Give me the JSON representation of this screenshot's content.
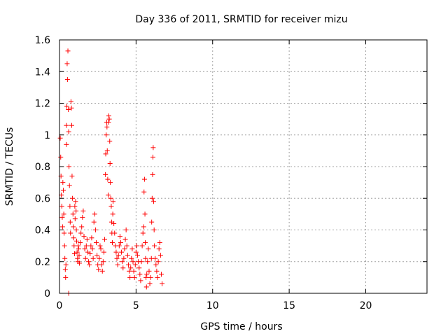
{
  "chart_data": {
    "type": "scatter",
    "title": "Day 336 of 2011, SRMTID for receiver mizu",
    "xlabel": "GPS time / hours",
    "ylabel": "SRMTID / TECUs",
    "xlim": [
      0,
      24
    ],
    "ylim": [
      0,
      1.6
    ],
    "xticks": [
      "0",
      "5",
      "10",
      "15",
      "20"
    ],
    "yticks": [
      "0",
      "0.2",
      "0.4",
      "0.6",
      "0.8",
      "1",
      "1.2",
      "1.4",
      "1.6"
    ],
    "grid": true,
    "marker": "+",
    "color": "#ff0000",
    "series": [
      {
        "points": [
          [
            0.05,
            0.98
          ],
          [
            0.08,
            0.86
          ],
          [
            0.1,
            0.74
          ],
          [
            0.12,
            0.62
          ],
          [
            0.15,
            0.55
          ],
          [
            0.18,
            0.48
          ],
          [
            0.2,
            0.42
          ],
          [
            0.22,
            0.7
          ],
          [
            0.25,
            0.65
          ],
          [
            0.28,
            0.5
          ],
          [
            0.3,
            0.38
          ],
          [
            0.33,
            0.3
          ],
          [
            0.35,
            0.22
          ],
          [
            0.38,
            0.15
          ],
          [
            0.4,
            0.1
          ],
          [
            0.42,
            0.18
          ],
          [
            0.45,
            0.94
          ],
          [
            0.45,
            1.06
          ],
          [
            0.48,
            1.18
          ],
          [
            0.5,
            1.45
          ],
          [
            0.52,
            1.35
          ],
          [
            0.55,
            1.53
          ],
          [
            0.58,
            1.16
          ],
          [
            0.6,
            1.02
          ],
          [
            0.62,
            0.8
          ],
          [
            0.65,
            0.68
          ],
          [
            0.68,
            0.55
          ],
          [
            0.7,
            0.45
          ],
          [
            0.72,
            0.38
          ],
          [
            0.75,
            1.21
          ],
          [
            0.78,
            1.17
          ],
          [
            0.8,
            1.06
          ],
          [
            0.82,
            0.74
          ],
          [
            0.85,
            0.6
          ],
          [
            0.88,
            0.5
          ],
          [
            0.9,
            0.42
          ],
          [
            0.92,
            0.35
          ],
          [
            0.95,
            0.3
          ],
          [
            0.98,
            0.25
          ],
          [
            1.0,
            0.55
          ],
          [
            1.02,
            0.47
          ],
          [
            1.05,
            0.58
          ],
          [
            1.08,
            0.52
          ],
          [
            1.1,
            0.4
          ],
          [
            1.12,
            0.33
          ],
          [
            1.15,
            0.26
          ],
          [
            1.18,
            0.22
          ],
          [
            1.2,
            0.2
          ],
          [
            1.22,
            0.3
          ],
          [
            1.25,
            0.28
          ],
          [
            1.28,
            0.24
          ],
          [
            1.3,
            0.19
          ],
          [
            1.35,
            0.32
          ],
          [
            1.4,
            0.38
          ],
          [
            1.45,
            0.42
          ],
          [
            1.5,
            0.48
          ],
          [
            1.55,
            0.52
          ],
          [
            1.6,
            0.36
          ],
          [
            1.65,
            0.28
          ],
          [
            1.7,
            0.22
          ],
          [
            1.75,
            0.3
          ],
          [
            1.8,
            0.34
          ],
          [
            1.85,
            0.26
          ],
          [
            1.9,
            0.2
          ],
          [
            1.95,
            0.18
          ],
          [
            2.0,
            0.25
          ],
          [
            2.05,
            0.3
          ],
          [
            2.1,
            0.35
          ],
          [
            2.15,
            0.28
          ],
          [
            2.2,
            0.22
          ],
          [
            2.25,
            0.45
          ],
          [
            2.3,
            0.5
          ],
          [
            2.35,
            0.4
          ],
          [
            2.4,
            0.32
          ],
          [
            2.45,
            0.24
          ],
          [
            2.5,
            0.18
          ],
          [
            2.55,
            0.15
          ],
          [
            2.6,
            0.22
          ],
          [
            2.65,
            0.3
          ],
          [
            2.7,
            0.28
          ],
          [
            2.75,
            0.18
          ],
          [
            2.8,
            0.14
          ],
          [
            2.85,
            0.2
          ],
          [
            2.9,
            0.26
          ],
          [
            2.95,
            0.34
          ],
          [
            3.0,
            0.75
          ],
          [
            3.02,
            0.88
          ],
          [
            3.05,
            1.0
          ],
          [
            3.08,
            1.08
          ],
          [
            3.1,
            1.05
          ],
          [
            3.12,
            0.9
          ],
          [
            3.15,
            0.72
          ],
          [
            3.18,
            0.62
          ],
          [
            3.2,
            1.08
          ],
          [
            3.22,
            1.12
          ],
          [
            3.25,
            1.1
          ],
          [
            3.28,
            0.96
          ],
          [
            3.3,
            0.82
          ],
          [
            3.32,
            0.7
          ],
          [
            3.35,
            0.6
          ],
          [
            3.38,
            0.55
          ],
          [
            3.4,
            0.45
          ],
          [
            3.42,
            0.38
          ],
          [
            3.45,
            0.32
          ],
          [
            3.48,
            0.5
          ],
          [
            3.5,
            0.58
          ],
          [
            3.55,
            0.44
          ],
          [
            3.6,
            0.38
          ],
          [
            3.65,
            0.3
          ],
          [
            3.7,
            0.26
          ],
          [
            3.75,
            0.22
          ],
          [
            3.8,
            0.18
          ],
          [
            3.85,
            0.24
          ],
          [
            3.9,
            0.3
          ],
          [
            3.95,
            0.36
          ],
          [
            4.0,
            0.32
          ],
          [
            4.05,
            0.26
          ],
          [
            4.1,
            0.2
          ],
          [
            4.15,
            0.16
          ],
          [
            4.2,
            0.22
          ],
          [
            4.25,
            0.28
          ],
          [
            4.3,
            0.34
          ],
          [
            4.35,
            0.4
          ],
          [
            4.4,
            0.3
          ],
          [
            4.45,
            0.24
          ],
          [
            4.5,
            0.18
          ],
          [
            4.55,
            0.14
          ],
          [
            4.6,
            0.1
          ],
          [
            4.65,
            0.16
          ],
          [
            4.7,
            0.22
          ],
          [
            4.75,
            0.28
          ],
          [
            4.8,
            0.2
          ],
          [
            4.85,
            0.14
          ],
          [
            4.9,
            0.1
          ],
          [
            4.95,
            0.18
          ],
          [
            5.0,
            0.26
          ],
          [
            5.05,
            0.3
          ],
          [
            5.1,
            0.24
          ],
          [
            5.15,
            0.2
          ],
          [
            5.2,
            0.16
          ],
          [
            5.25,
            0.12
          ],
          [
            5.3,
            0.08
          ],
          [
            5.35,
            0.2
          ],
          [
            5.4,
            0.3
          ],
          [
            5.45,
            0.38
          ],
          [
            5.5,
            0.42
          ],
          [
            5.52,
            0.64
          ],
          [
            5.55,
            0.72
          ],
          [
            5.58,
            0.5
          ],
          [
            5.6,
            0.32
          ],
          [
            5.62,
            0.22
          ],
          [
            5.65,
            0.1
          ],
          [
            5.68,
            0.04
          ],
          [
            5.7,
            0.12
          ],
          [
            5.75,
            0.2
          ],
          [
            5.8,
            0.28
          ],
          [
            5.85,
            0.14
          ],
          [
            5.9,
            0.06
          ],
          [
            5.95,
            0.1
          ],
          [
            6.0,
            0.22
          ],
          [
            6.02,
            0.45
          ],
          [
            6.05,
            0.6
          ],
          [
            6.08,
            0.75
          ],
          [
            6.1,
            0.86
          ],
          [
            6.12,
            0.92
          ],
          [
            6.15,
            0.58
          ],
          [
            6.18,
            0.4
          ],
          [
            6.2,
            0.3
          ],
          [
            6.25,
            0.22
          ],
          [
            6.3,
            0.18
          ],
          [
            6.35,
            0.14
          ],
          [
            6.4,
            0.1
          ],
          [
            6.45,
            0.2
          ],
          [
            6.5,
            0.28
          ],
          [
            6.55,
            0.32
          ],
          [
            6.6,
            0.24
          ],
          [
            6.65,
            0.12
          ],
          [
            6.7,
            0.06
          ],
          [
            0.6,
            0.0
          ]
        ]
      }
    ]
  }
}
